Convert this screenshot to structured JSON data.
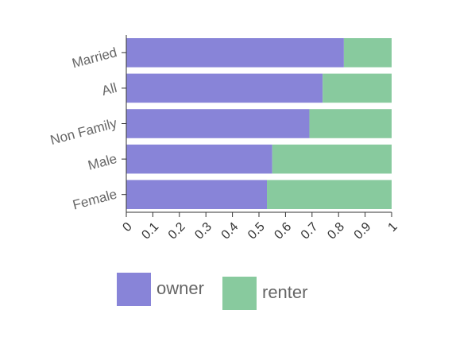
{
  "chart_data": {
    "type": "stacked-barh",
    "categories": [
      "Married",
      "All",
      "Non Family",
      "Male",
      "Female"
    ],
    "series": [
      {
        "name": "owner",
        "color": "#8884d8",
        "values": [
          0.82,
          0.74,
          0.69,
          0.55,
          0.53
        ]
      },
      {
        "name": "renter",
        "color": "#88ca9e",
        "values": [
          0.18,
          0.26,
          0.31,
          0.45,
          0.47
        ]
      }
    ],
    "xlim": [
      0,
      1
    ],
    "xticks": [
      0,
      0.1,
      0.2,
      0.3,
      0.4,
      0.5,
      0.6,
      0.7,
      0.8,
      0.9,
      1
    ]
  }
}
